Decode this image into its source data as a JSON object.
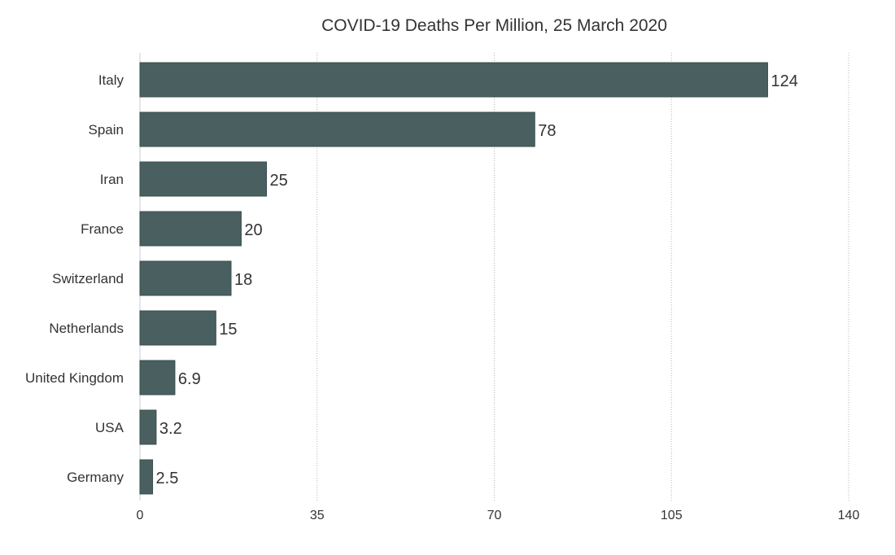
{
  "chart_data": {
    "type": "bar",
    "orientation": "horizontal",
    "title": "COVID-19 Deaths Per Million, 25 March 2020",
    "xlabel": "",
    "ylabel": "",
    "categories": [
      "Italy",
      "Spain",
      "Iran",
      "France",
      "Switzerland",
      "Netherlands",
      "United Kingdom",
      "USA",
      "Germany"
    ],
    "values": [
      124,
      78,
      25,
      20,
      18,
      15,
      6.9,
      3.2,
      2.5
    ],
    "value_labels": [
      "124",
      "78",
      "25",
      "20",
      "18",
      "15",
      "6.9",
      "3.2",
      "2.5"
    ],
    "xlim": [
      0,
      140
    ],
    "xticks": [
      0,
      35,
      70,
      105,
      140
    ],
    "grid": "vertical dotted",
    "legend": "none",
    "colors": {
      "bar": "#4a6060",
      "bar_stroke": "#3a4d4d",
      "grid": "#b5b5b5",
      "axis": "#cccccc",
      "text": "#333333"
    }
  }
}
